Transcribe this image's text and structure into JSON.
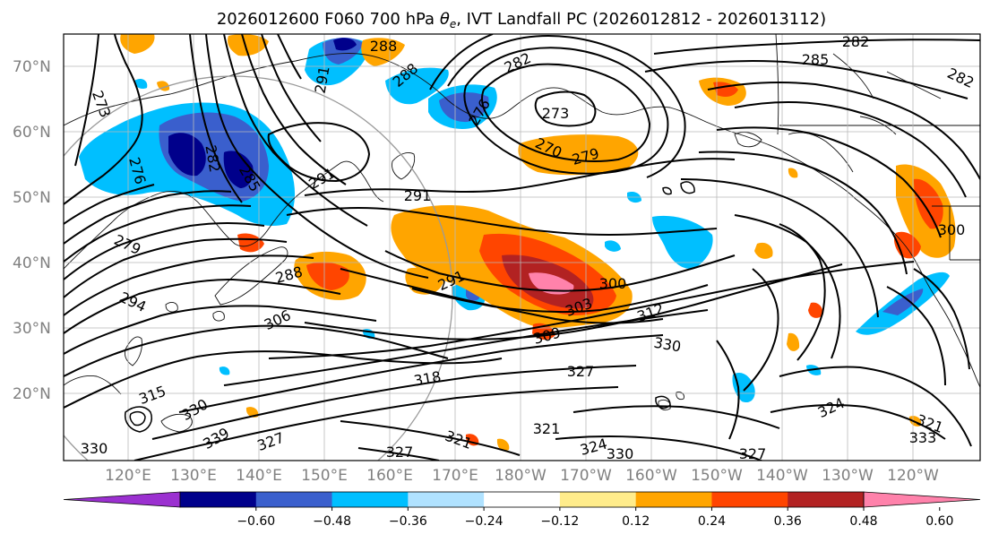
{
  "chart_data": {
    "type": "heatmap",
    "title": "2026012600 F060 700 hPa θe, IVT Landfall PC (2026012812 - 2026013112)",
    "title_parts": {
      "pre": "2026012600 F060 700 hPa ",
      "theta": "θ",
      "sub": "e",
      "post": ", IVT Landfall PC (2026012812 - 2026013112)"
    },
    "lat_ticks": [
      "70°N",
      "60°N",
      "50°N",
      "40°N",
      "30°N",
      "20°N"
    ],
    "lon_ticks": [
      "120°E",
      "130°E",
      "140°E",
      "150°E",
      "160°E",
      "170°E",
      "180°W",
      "170°W",
      "160°W",
      "150°W",
      "140°W",
      "130°W",
      "120°W"
    ],
    "lat_range": [
      10,
      75
    ],
    "lon_range": [
      112,
      -115
    ],
    "grid": true,
    "colorbar": {
      "orientation": "horizontal",
      "extend": "both",
      "levels": [
        -0.6,
        -0.48,
        -0.36,
        -0.24,
        -0.12,
        0.12,
        0.24,
        0.36,
        0.48,
        0.6
      ],
      "tick_labels": [
        "−0.60",
        "−0.48",
        "−0.36",
        "−0.24",
        "−0.12",
        "0.12",
        "0.24",
        "0.36",
        "0.48",
        "0.60"
      ],
      "colors": [
        "#9b30d0",
        "#00008b",
        "#3a5fcd",
        "#00bfff",
        "#b0e2ff",
        "#ffffff",
        "#ffec8b",
        "#ffa500",
        "#ff4500",
        "#b22222",
        "#ff82ab"
      ]
    },
    "contour_labels": [
      "288",
      "282",
      "285",
      "282",
      "273",
      "291",
      "288",
      "282",
      "276",
      "273",
      "270",
      "279",
      "276",
      "282",
      "285",
      "291",
      "291",
      "300",
      "279",
      "288",
      "294",
      "291",
      "300",
      "303",
      "306",
      "309",
      "312",
      "330",
      "315",
      "318",
      "327",
      "324",
      "321",
      "330",
      "339",
      "321",
      "327",
      "324",
      "330",
      "327",
      "330",
      "333",
      "321",
      "327"
    ]
  }
}
